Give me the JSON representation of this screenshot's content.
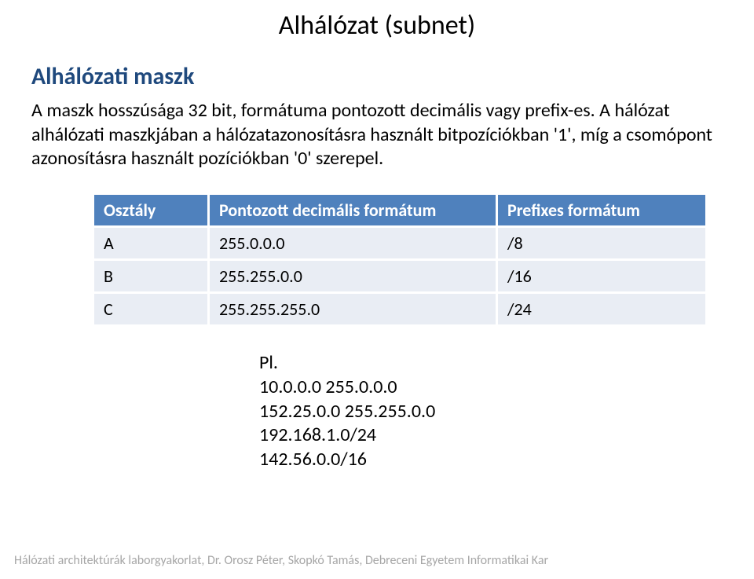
{
  "title": "Alhálózat (subnet)",
  "heading": "Alhálózati maszk",
  "paragraph": "A maszk hosszúsága 32 bit, formátuma pontozott decimális vagy prefix-es. A hálózat alhálózati maszkjában a hálózatazonosításra használt bitpozíciókban '1', míg a csomópont azonosításra használt pozíciókban '0' szerepel.",
  "table": {
    "columns": [
      "Osztály",
      "Pontozott decimális formátum",
      "Prefixes formátum"
    ],
    "rows": [
      [
        "A",
        "255.0.0.0",
        "/8"
      ],
      [
        "B",
        "255.255.0.0",
        "/16"
      ],
      [
        "C",
        "255.255.255.0",
        "/24"
      ]
    ],
    "header_bg": "#4f81bd",
    "header_fg": "#ffffff",
    "cell_bg": "#e9edf4",
    "cell_fg": "#000000",
    "font_size": 22
  },
  "examples": {
    "label": "Pl.",
    "lines": [
      "10.0.0.0 255.0.0.0",
      "152.25.0.0 255.255.0.0",
      "192.168.1.0/24",
      "142.56.0.0/16"
    ]
  },
  "footer": "Hálózati architektúrák laborgyakorlat, Dr. Orosz Péter, Skopkó Tamás, Debreceni Egyetem Informatikai Kar",
  "colors": {
    "heading": "#1f497d",
    "title": "#000000",
    "body": "#000000",
    "footer": "#a6a6a6",
    "background": "#ffffff"
  },
  "fonts": {
    "title_size": 34,
    "heading_size": 30,
    "body_size": 24,
    "footer_size": 16
  }
}
